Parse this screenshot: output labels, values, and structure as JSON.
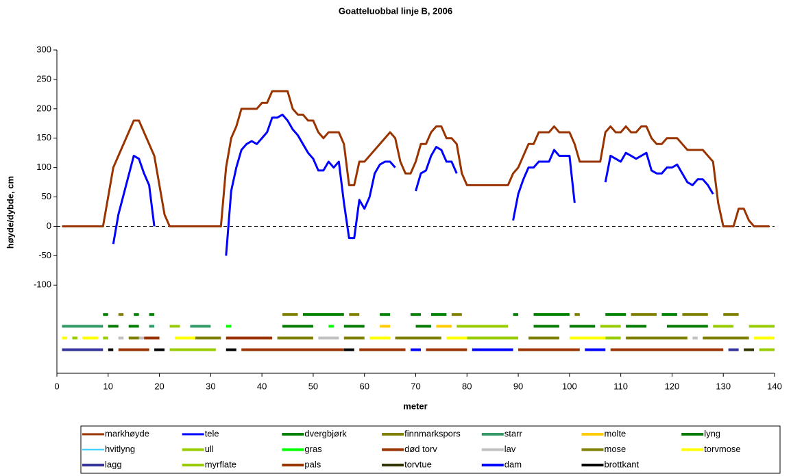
{
  "chart_data": {
    "type": "line",
    "title": "Goatteluobbal linje B, 2006",
    "x_label": "meter",
    "y_label": "høyde/dybde, cm",
    "xlim": [
      0,
      140
    ],
    "xticks": [
      0,
      10,
      20,
      30,
      40,
      50,
      60,
      70,
      80,
      90,
      100,
      110,
      120,
      130,
      140
    ],
    "ylim": [
      -250,
      300
    ],
    "yticks": [
      -100,
      -50,
      0,
      50,
      100,
      150,
      200,
      250,
      300
    ],
    "reference_line": 0,
    "series": [
      {
        "name": "markhøyde",
        "color": "#993300",
        "width": 3,
        "x": [
          1,
          9,
          11,
          15,
          16,
          19,
          21,
          22,
          32,
          33,
          34,
          35,
          36,
          39,
          40,
          41,
          42,
          45,
          46,
          47,
          48,
          49,
          50,
          51,
          52,
          53,
          55,
          56,
          57,
          58,
          59,
          60,
          65,
          66,
          67,
          68,
          69,
          70,
          71,
          72,
          73,
          74,
          75,
          76,
          77,
          78,
          79,
          80,
          88,
          89,
          90,
          92,
          93,
          94,
          96,
          97,
          98,
          100,
          101,
          102,
          106,
          107,
          108,
          109,
          110,
          111,
          112,
          113,
          114,
          115,
          116,
          117,
          118,
          119,
          121,
          122,
          123,
          126,
          128,
          129,
          130,
          132,
          133,
          134,
          135,
          136,
          139
        ],
        "values": [
          0,
          0,
          100,
          180,
          180,
          120,
          20,
          0,
          0,
          100,
          150,
          170,
          200,
          200,
          210,
          210,
          230,
          230,
          200,
          190,
          190,
          180,
          180,
          160,
          150,
          160,
          160,
          140,
          70,
          70,
          110,
          110,
          160,
          150,
          110,
          90,
          90,
          110,
          140,
          140,
          160,
          170,
          170,
          150,
          150,
          140,
          90,
          70,
          70,
          90,
          100,
          140,
          140,
          160,
          160,
          170,
          160,
          160,
          140,
          110,
          110,
          160,
          170,
          160,
          160,
          170,
          160,
          160,
          170,
          170,
          150,
          140,
          140,
          150,
          150,
          140,
          130,
          130,
          110,
          40,
          0,
          0,
          30,
          30,
          10,
          0,
          0
        ]
      },
      {
        "name": "tele",
        "color": "#0000ff",
        "width": 3,
        "x": [
          11,
          12,
          15,
          16,
          17,
          18,
          19,
          null,
          33,
          34,
          35,
          36,
          37,
          38,
          39,
          40,
          41,
          42,
          43,
          44,
          45,
          46,
          47,
          48,
          49,
          50,
          51,
          52,
          53,
          54,
          55,
          56,
          57,
          58,
          59,
          60,
          61,
          62,
          63,
          64,
          65,
          66,
          null,
          70,
          71,
          72,
          73,
          74,
          75,
          76,
          77,
          78,
          null,
          89,
          90,
          91,
          92,
          93,
          94,
          96,
          97,
          98,
          100,
          101,
          null,
          107,
          108,
          110,
          111,
          112,
          113,
          115,
          116,
          117,
          118,
          119,
          120,
          121,
          122,
          123,
          124,
          125,
          126,
          127,
          128
        ],
        "values": [
          -30,
          20,
          120,
          115,
          90,
          70,
          0,
          null,
          -50,
          60,
          100,
          130,
          140,
          145,
          140,
          150,
          160,
          185,
          185,
          190,
          180,
          165,
          155,
          140,
          125,
          115,
          95,
          95,
          110,
          100,
          110,
          40,
          -20,
          -20,
          45,
          30,
          50,
          90,
          105,
          110,
          110,
          100,
          null,
          60,
          90,
          95,
          120,
          135,
          130,
          110,
          110,
          90,
          null,
          10,
          55,
          80,
          100,
          100,
          110,
          110,
          130,
          120,
          120,
          40,
          null,
          75,
          120,
          110,
          125,
          120,
          115,
          125,
          95,
          90,
          90,
          100,
          100,
          105,
          90,
          75,
          70,
          80,
          80,
          70,
          55
        ]
      },
      {
        "name": "dvergbjørk",
        "color": "#008000",
        "width": 4,
        "x": [
          9,
          10,
          null,
          15,
          16,
          null,
          18,
          19,
          null,
          48,
          56,
          null,
          63,
          65,
          null,
          69,
          71,
          null,
          73,
          76,
          null,
          89,
          90,
          null,
          93,
          100,
          null,
          107,
          111,
          null,
          118,
          121
        ],
        "values": [
          -150,
          -150,
          null,
          -150,
          -150,
          null,
          -150,
          -150,
          null,
          -150,
          -150,
          null,
          -150,
          -150,
          null,
          -150,
          -150,
          null,
          -150,
          -150,
          null,
          -150,
          -150,
          null,
          -150,
          -150,
          null,
          -150,
          -150,
          null,
          -150,
          -150
        ]
      },
      {
        "name": "finnmarkspors",
        "color": "#808000",
        "width": 4,
        "x": [
          12,
          13,
          null,
          44,
          47,
          null,
          57,
          59,
          null,
          77,
          79,
          null,
          101,
          102,
          null,
          112,
          117,
          null,
          122,
          127,
          null,
          130,
          133
        ],
        "values": [
          -150,
          -150,
          null,
          -150,
          -150,
          null,
          -150,
          -150,
          null,
          -150,
          -150,
          null,
          -150,
          -150,
          null,
          -150,
          -150,
          null,
          -150,
          -150,
          null,
          -150,
          -150
        ]
      },
      {
        "name": "starr",
        "color": "#339966",
        "width": 4,
        "x": [
          1,
          9,
          null,
          18,
          19,
          null,
          26,
          30
        ],
        "values": [
          -170,
          -170,
          null,
          -170,
          -170,
          null,
          -170,
          -170
        ]
      },
      {
        "name": "molte",
        "color": "#ffcc00",
        "width": 4,
        "x": [
          63,
          65,
          null,
          74,
          77
        ],
        "values": [
          -170,
          -170,
          null,
          -170,
          -170
        ]
      },
      {
        "name": "lyng",
        "color": "#007a00",
        "width": 4,
        "x": [
          10,
          12,
          null,
          14,
          16,
          null,
          44,
          50,
          null,
          56,
          60,
          null,
          70,
          73,
          null,
          93,
          98,
          null,
          100,
          105,
          null,
          111,
          115,
          null,
          119,
          127
        ],
        "values": [
          -170,
          -170,
          null,
          -170,
          -170,
          null,
          -170,
          -170,
          null,
          -170,
          -170,
          null,
          -170,
          -170,
          null,
          -170,
          -170,
          null,
          -170,
          -170,
          null,
          -170,
          -170,
          null,
          -170,
          -170
        ]
      },
      {
        "name": "hvitlyng",
        "color": "#33ccff",
        "width": 2,
        "x": [],
        "values": []
      },
      {
        "name": "ull",
        "color": "#99cc00",
        "width": 4,
        "x": [
          22,
          24,
          null,
          78,
          88,
          null,
          106,
          110,
          null,
          128,
          132,
          null,
          135,
          140,
          null,
          3,
          4,
          null,
          9,
          10,
          null,
          80,
          90,
          null,
          107,
          110
        ],
        "values": [
          -170,
          -170,
          null,
          -170,
          -170,
          null,
          -170,
          -170,
          null,
          -170,
          -170,
          null,
          -170,
          -170,
          null,
          -190,
          -190,
          null,
          -190,
          -190,
          null,
          -190,
          -190,
          null,
          -190,
          -190
        ]
      },
      {
        "name": "gras",
        "color": "#00ff00",
        "width": 4,
        "x": [
          33,
          34,
          null,
          53,
          54
        ],
        "values": [
          -170,
          -170,
          null,
          -170,
          -170
        ]
      },
      {
        "name": "død torv",
        "color": "#993300",
        "width": 4,
        "x": [
          17,
          20,
          null,
          33,
          42
        ],
        "values": [
          -190,
          -190,
          null,
          -190,
          -190
        ]
      },
      {
        "name": "lav",
        "color": "#c0c0c0",
        "width": 4,
        "x": [
          12,
          13,
          null,
          16,
          17,
          null,
          51,
          55,
          null,
          124,
          125
        ],
        "values": [
          -190,
          -190,
          null,
          -190,
          -190,
          null,
          -190,
          -190,
          null,
          -190,
          -190
        ]
      },
      {
        "name": "mose",
        "color": "#808000",
        "width": 4,
        "x": [
          14,
          16,
          null,
          27,
          32,
          null,
          43,
          50,
          null,
          56,
          60,
          null,
          66,
          75,
          null,
          92,
          98,
          null,
          111,
          123,
          null,
          126,
          135
        ],
        "values": [
          -190,
          -190,
          null,
          -190,
          -190,
          null,
          -190,
          -190,
          null,
          -190,
          -190,
          null,
          -190,
          -190,
          null,
          -190,
          -190,
          null,
          -190,
          -190,
          null,
          -190,
          -190
        ]
      },
      {
        "name": "torvmose",
        "color": "#ffff00",
        "width": 4,
        "x": [
          1,
          2,
          null,
          5,
          8,
          null,
          23,
          27,
          null,
          61,
          65,
          null,
          76,
          80,
          null,
          100,
          107,
          null,
          136,
          140
        ],
        "values": [
          -190,
          -190,
          null,
          -190,
          -190,
          null,
          -190,
          -190,
          null,
          -190,
          -190,
          null,
          -190,
          -190,
          null,
          -190,
          -190,
          null,
          -190,
          -190
        ]
      },
      {
        "name": "lagg",
        "color": "#333399",
        "width": 4,
        "x": [
          1,
          9,
          null,
          131,
          133
        ],
        "values": [
          -210,
          -210,
          null,
          -210,
          -210
        ]
      },
      {
        "name": "myrflate",
        "color": "#99cc00",
        "width": 4,
        "x": [
          22,
          31,
          null,
          137,
          140
        ],
        "values": [
          -210,
          -210,
          null,
          -210,
          -210
        ]
      },
      {
        "name": "pals",
        "color": "#993300",
        "width": 4,
        "x": [
          12,
          18,
          null,
          36,
          56,
          null,
          59,
          68,
          null,
          72,
          80,
          null,
          90,
          102,
          null,
          108,
          130
        ],
        "values": [
          -210,
          -210,
          null,
          -210,
          -210,
          null,
          -210,
          -210,
          null,
          -210,
          -210,
          null,
          -210,
          -210,
          null,
          -210,
          -210
        ]
      },
      {
        "name": "torvtue",
        "color": "#333300",
        "width": 4,
        "x": [
          134,
          136
        ],
        "values": [
          -210,
          -210
        ]
      },
      {
        "name": "dam",
        "color": "#0000ff",
        "width": 4,
        "x": [
          69,
          71,
          null,
          81,
          89,
          null,
          103,
          107
        ],
        "values": [
          -210,
          -210,
          null,
          -210,
          -210,
          null,
          -210,
          -210
        ]
      },
      {
        "name": "brottkant",
        "color": "#000000",
        "width": 4,
        "x": [
          10,
          11,
          null,
          19,
          21,
          null,
          33,
          35,
          null,
          56,
          58
        ],
        "values": [
          -210,
          -210,
          null,
          -210,
          -210,
          null,
          -210,
          -210,
          null,
          -210,
          -210
        ]
      }
    ]
  }
}
